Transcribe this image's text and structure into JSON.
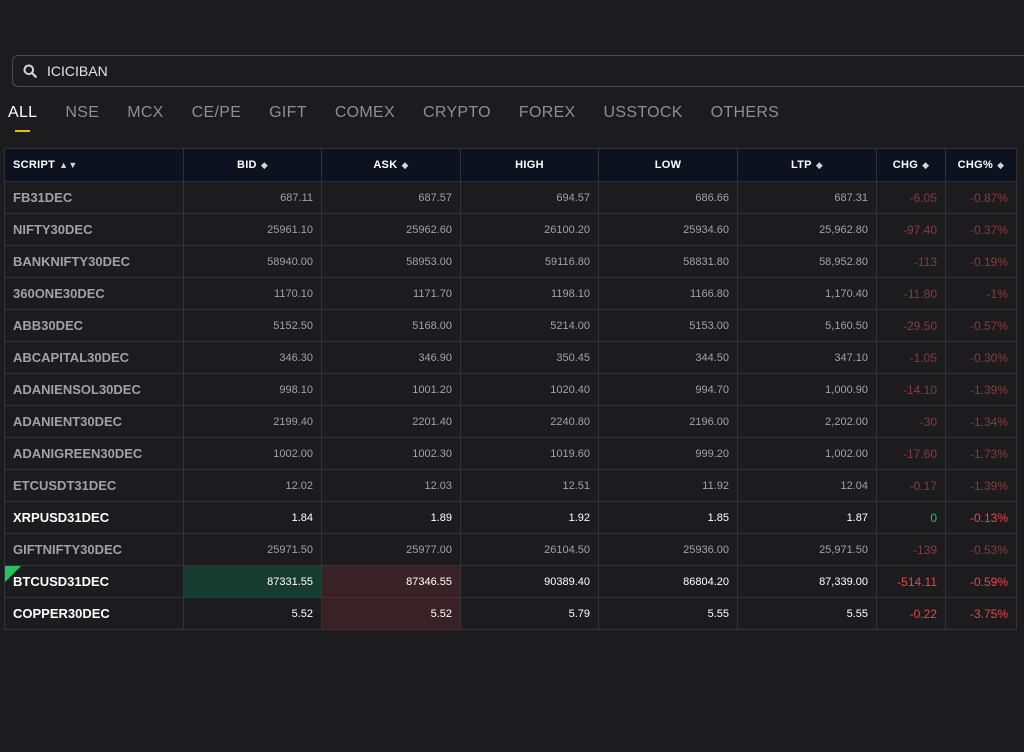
{
  "search": {
    "value": "ICICIBAN",
    "icon": "search-icon"
  },
  "tabs": [
    {
      "label": "ALL",
      "active": true
    },
    {
      "label": "NSE"
    },
    {
      "label": "MCX"
    },
    {
      "label": "CE/PE"
    },
    {
      "label": "GIFT"
    },
    {
      "label": "COMEX"
    },
    {
      "label": "CRYPTO"
    },
    {
      "label": "FOREX"
    },
    {
      "label": "USSTOCK"
    },
    {
      "label": "OTHERS"
    }
  ],
  "columns": {
    "script": "SCRIPT",
    "bid": "BID",
    "ask": "ASK",
    "high": "HIGH",
    "low": "LOW",
    "ltp": "LTP",
    "chg": "CHG",
    "chgp": "CHG%"
  },
  "colors": {
    "accent": "#f0b90b",
    "negative": "#ef4444",
    "positive": "#22c55e",
    "bid_flash": "#163c30",
    "ask_flash": "#3a2127"
  },
  "rows": [
    {
      "script": "FB31DEC",
      "bid": "687.11",
      "ask": "687.57",
      "high": "694.57",
      "low": "686.66",
      "ltp": "687.31",
      "chg": "-6.05",
      "chgp": "-0.87%"
    },
    {
      "script": "NIFTY30DEC",
      "bid": "25961.10",
      "ask": "25962.60",
      "high": "26100.20",
      "low": "25934.60",
      "ltp": "25,962.80",
      "chg": "-97.40",
      "chgp": "-0.37%"
    },
    {
      "script": "BANKNIFTY30DEC",
      "bid": "58940.00",
      "ask": "58953.00",
      "high": "59116.80",
      "low": "58831.80",
      "ltp": "58,952.80",
      "chg": "-113",
      "chgp": "-0.19%"
    },
    {
      "script": "360ONE30DEC",
      "bid": "1170.10",
      "ask": "1171.70",
      "high": "1198.10",
      "low": "1166.80",
      "ltp": "1,170.40",
      "chg": "-11.80",
      "chgp": "-1%"
    },
    {
      "script": "ABB30DEC",
      "bid": "5152.50",
      "ask": "5168.00",
      "high": "5214.00",
      "low": "5153.00",
      "ltp": "5,160.50",
      "chg": "-29.50",
      "chgp": "-0.57%"
    },
    {
      "script": "ABCAPITAL30DEC",
      "bid": "346.30",
      "ask": "346.90",
      "high": "350.45",
      "low": "344.50",
      "ltp": "347.10",
      "chg": "-1.05",
      "chgp": "-0.30%"
    },
    {
      "script": "ADANIENSOL30DEC",
      "bid": "998.10",
      "ask": "1001.20",
      "high": "1020.40",
      "low": "994.70",
      "ltp": "1,000.90",
      "chg": "-14.10",
      "chgp": "-1.39%"
    },
    {
      "script": "ADANIENT30DEC",
      "bid": "2199.40",
      "ask": "2201.40",
      "high": "2240.80",
      "low": "2196.00",
      "ltp": "2,202.00",
      "chg": "-30",
      "chgp": "-1.34%"
    },
    {
      "script": "ADANIGREEN30DEC",
      "bid": "1002.00",
      "ask": "1002.30",
      "high": "1019.60",
      "low": "999.20",
      "ltp": "1,002.00",
      "chg": "-17.60",
      "chgp": "-1.73%"
    },
    {
      "script": "ETCUSDT31DEC",
      "bid": "12.02",
      "ask": "12.03",
      "high": "12.51",
      "low": "11.92",
      "ltp": "12.04",
      "chg": "-0.17",
      "chgp": "-1.39%"
    },
    {
      "script": "XRPUSD31DEC",
      "bid": "1.84",
      "ask": "1.89",
      "high": "1.92",
      "low": "1.85",
      "ltp": "1.87",
      "chg": "0",
      "chgp": "-0.13%",
      "bright": true
    },
    {
      "script": "GIFTNIFTY30DEC",
      "bid": "25971.50",
      "ask": "25977.00",
      "high": "26104.50",
      "low": "25936.00",
      "ltp": "25,971.50",
      "chg": "-139",
      "chgp": "-0.53%"
    },
    {
      "script": "BTCUSD31DEC",
      "bid": "87331.55",
      "ask": "87346.55",
      "high": "90389.40",
      "low": "86804.20",
      "ltp": "87,339.00",
      "chg": "-514.11",
      "chgp": "-0.59%",
      "bright": true,
      "bid_flash": true,
      "ask_flash": true,
      "corner": true
    },
    {
      "script": "COPPER30DEC",
      "bid": "5.52",
      "ask": "5.52",
      "high": "5.79",
      "low": "5.55",
      "ltp": "5.55",
      "chg": "-0.22",
      "chgp": "-3.75%",
      "bright": true,
      "ask_flash": true
    }
  ]
}
